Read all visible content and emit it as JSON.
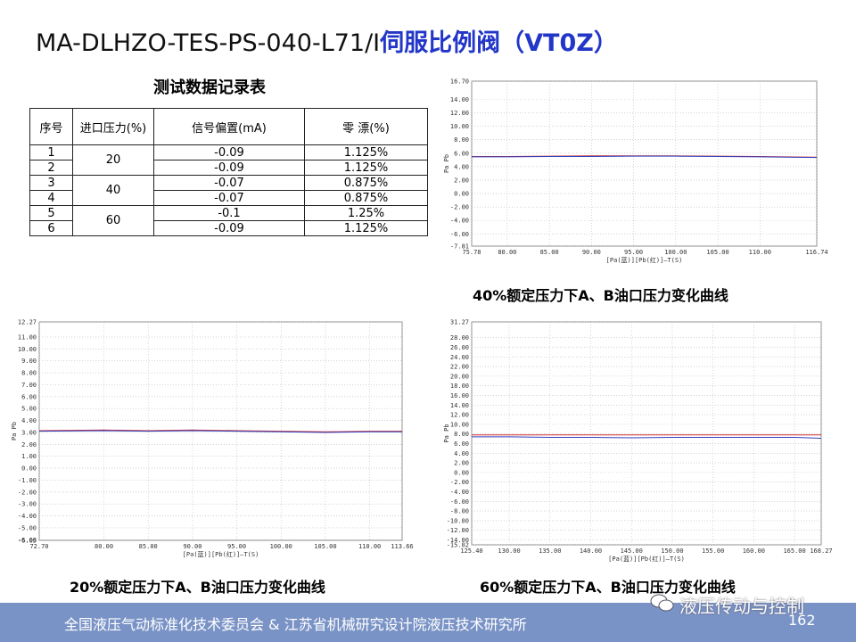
{
  "title": {
    "code": "MA-DLHZO-TES-PS-040-L71/I",
    "name": "伺服比例阀（VT0Z）"
  },
  "table": {
    "title": "测试数据记录表",
    "headers": [
      "序号",
      "进口压力(%)",
      "信号偏置(mA)",
      "零  漂(%)"
    ],
    "groups": [
      {
        "pressure": "20",
        "rows": [
          [
            "1",
            "-0.09",
            "1.125%"
          ],
          [
            "2",
            "-0.09",
            "1.125%"
          ]
        ]
      },
      {
        "pressure": "40",
        "rows": [
          [
            "3",
            "-0.07",
            "0.875%"
          ],
          [
            "4",
            "-0.07",
            "0.875%"
          ]
        ]
      },
      {
        "pressure": "60",
        "rows": [
          [
            "5",
            "-0.1",
            "1.25%"
          ],
          [
            "6",
            "-0.09",
            "1.125%"
          ]
        ]
      }
    ]
  },
  "chart_data": [
    {
      "type": "line",
      "caption": "40%额定压力下A、B油口压力变化曲线",
      "ylabel": "Pa Pb",
      "xlabel": "[Pa(蓝)][Pb(红)]—T(S)",
      "xlim": [
        75.78,
        116.74
      ],
      "xticks": [
        {
          "value": 75.78,
          "label": "75.78"
        },
        {
          "value": 80,
          "label": "80.00"
        },
        {
          "value": 85,
          "label": "85.00"
        },
        {
          "value": 90,
          "label": "90.00"
        },
        {
          "value": 95,
          "label": "95.00"
        },
        {
          "value": 100,
          "label": "100.00"
        },
        {
          "value": 105,
          "label": "105.00"
        },
        {
          "value": 110,
          "label": "110.00"
        },
        {
          "value": 116.74,
          "label": "116.74"
        }
      ],
      "ylim": [
        -7.81,
        16.7
      ],
      "yticks": [
        {
          "value": 16.7,
          "label": "16.70"
        },
        {
          "value": 14,
          "label": "14.00"
        },
        {
          "value": 12,
          "label": "12.00"
        },
        {
          "value": 10,
          "label": "10.00"
        },
        {
          "value": 8,
          "label": "8.00"
        },
        {
          "value": 6,
          "label": "6.00"
        },
        {
          "value": 4,
          "label": "4.00"
        },
        {
          "value": 2,
          "label": "2.00"
        },
        {
          "value": 0,
          "label": "0.00"
        },
        {
          "value": -2,
          "label": "-2.00"
        },
        {
          "value": -4,
          "label": "-4.00"
        },
        {
          "value": -6,
          "label": "-6.00"
        },
        {
          "value": -7.81,
          "label": "-7.81"
        }
      ],
      "grid": true,
      "x": [
        75.78,
        80,
        85,
        90,
        95,
        100,
        105,
        110,
        116.74
      ],
      "series": [
        {
          "name": "Pb",
          "color": "#d03030",
          "values": [
            5.5,
            5.5,
            5.55,
            5.6,
            5.6,
            5.6,
            5.55,
            5.5,
            5.4
          ]
        },
        {
          "name": "Pa",
          "color": "#3040c0",
          "values": [
            5.45,
            5.45,
            5.5,
            5.5,
            5.55,
            5.55,
            5.5,
            5.45,
            5.35
          ]
        }
      ]
    },
    {
      "type": "line",
      "caption": "20%额定压力下A、B油口压力变化曲线",
      "ylabel": "Pa Pb",
      "xlabel": "[Pa(蓝)][Pb(红)]—T(S)",
      "xlim": [
        72.7,
        113.66
      ],
      "xticks": [
        {
          "value": 72.7,
          "label": "72.70"
        },
        {
          "value": 80,
          "label": "80.00"
        },
        {
          "value": 85,
          "label": "85.00"
        },
        {
          "value": 90,
          "label": "90.00"
        },
        {
          "value": 95,
          "label": "95.00"
        },
        {
          "value": 100,
          "label": "100.00"
        },
        {
          "value": 105,
          "label": "105.00"
        },
        {
          "value": 110,
          "label": "110.00"
        },
        {
          "value": 113.66,
          "label": "113.66"
        }
      ],
      "ylim": [
        -6.05,
        12.27
      ],
      "yticks": [
        {
          "value": 12.27,
          "label": "12.27"
        },
        {
          "value": 11,
          "label": "11.00"
        },
        {
          "value": 10,
          "label": "10.00"
        },
        {
          "value": 9,
          "label": "9.00"
        },
        {
          "value": 8,
          "label": "8.00"
        },
        {
          "value": 7,
          "label": "7.00"
        },
        {
          "value": 6,
          "label": "6.00"
        },
        {
          "value": 5,
          "label": "5.00"
        },
        {
          "value": 4,
          "label": "4.00"
        },
        {
          "value": 3,
          "label": "3.00"
        },
        {
          "value": 2,
          "label": "2.00"
        },
        {
          "value": 1,
          "label": "1.00"
        },
        {
          "value": 0,
          "label": "0.00"
        },
        {
          "value": -1,
          "label": "-1.00"
        },
        {
          "value": -2,
          "label": "-2.00"
        },
        {
          "value": -3,
          "label": "-3.00"
        },
        {
          "value": -4,
          "label": "-4.00"
        },
        {
          "value": -5,
          "label": "-5.00"
        },
        {
          "value": -6,
          "label": "-6.00"
        },
        {
          "value": -6.05,
          "label": "-6.05"
        }
      ],
      "grid": true,
      "x": [
        72.7,
        80,
        85,
        90,
        95,
        100,
        105,
        110,
        113.66
      ],
      "series": [
        {
          "name": "Pb",
          "color": "#d03030",
          "values": [
            3.15,
            3.2,
            3.15,
            3.2,
            3.15,
            3.1,
            3.05,
            3.1,
            3.1
          ]
        },
        {
          "name": "Pa",
          "color": "#3040c0",
          "values": [
            3.1,
            3.15,
            3.1,
            3.15,
            3.1,
            3.05,
            3.0,
            3.05,
            3.05
          ]
        }
      ]
    },
    {
      "type": "line",
      "caption": "60%额定压力下A、B油口压力变化曲线",
      "ylabel": "Pa Pb",
      "xlabel": "[Pa(蓝)][Pb(红)]—T(S)",
      "xlim": [
        125.4,
        168.27
      ],
      "xticks": [
        {
          "value": 125.4,
          "label": "125.40"
        },
        {
          "value": 130,
          "label": "130.00"
        },
        {
          "value": 135,
          "label": "135.00"
        },
        {
          "value": 140,
          "label": "140.00"
        },
        {
          "value": 145,
          "label": "145.00"
        },
        {
          "value": 150,
          "label": "150.00"
        },
        {
          "value": 155,
          "label": "155.00"
        },
        {
          "value": 160,
          "label": "160.00"
        },
        {
          "value": 165,
          "label": "165.00"
        },
        {
          "value": 168.27,
          "label": "168.27"
        }
      ],
      "ylim": [
        -15.02,
        31.27
      ],
      "yticks": [
        {
          "value": 31.27,
          "label": "31.27"
        },
        {
          "value": 28,
          "label": "28.00"
        },
        {
          "value": 26,
          "label": "26.00"
        },
        {
          "value": 24,
          "label": "24.00"
        },
        {
          "value": 22,
          "label": "22.00"
        },
        {
          "value": 20,
          "label": "20.00"
        },
        {
          "value": 18,
          "label": "18.00"
        },
        {
          "value": 16,
          "label": "16.00"
        },
        {
          "value": 14,
          "label": "14.00"
        },
        {
          "value": 12,
          "label": "12.00"
        },
        {
          "value": 10,
          "label": "10.00"
        },
        {
          "value": 8,
          "label": "8.00"
        },
        {
          "value": 6,
          "label": "6.00"
        },
        {
          "value": 4,
          "label": "4.00"
        },
        {
          "value": 2,
          "label": "2.00"
        },
        {
          "value": 0,
          "label": "0.00"
        },
        {
          "value": -2,
          "label": "-2.00"
        },
        {
          "value": -4,
          "label": "-4.00"
        },
        {
          "value": -6,
          "label": "-6.00"
        },
        {
          "value": -8,
          "label": "-8.00"
        },
        {
          "value": -10,
          "label": "-10.00"
        },
        {
          "value": -12,
          "label": "-12.00"
        },
        {
          "value": -14,
          "label": "-14.00"
        },
        {
          "value": -15.02,
          "label": "-15.02"
        }
      ],
      "grid": true,
      "x": [
        125.4,
        130,
        135,
        140,
        145,
        150,
        155,
        160,
        165,
        168.27
      ],
      "series": [
        {
          "name": "Pb",
          "color": "#d03030",
          "values": [
            7.8,
            7.8,
            7.8,
            7.8,
            7.8,
            7.8,
            7.8,
            7.8,
            7.8,
            7.8
          ]
        },
        {
          "name": "Pa",
          "color": "#3040c0",
          "values": [
            7.4,
            7.4,
            7.3,
            7.3,
            7.2,
            7.3,
            7.3,
            7.3,
            7.3,
            7.1
          ]
        }
      ]
    }
  ],
  "footer": {
    "org": "全国液压气动标准化技术委员会 & 江苏省机械研究设计院液压技术研究所",
    "brand": "液压传动与控制",
    "page": "162"
  }
}
